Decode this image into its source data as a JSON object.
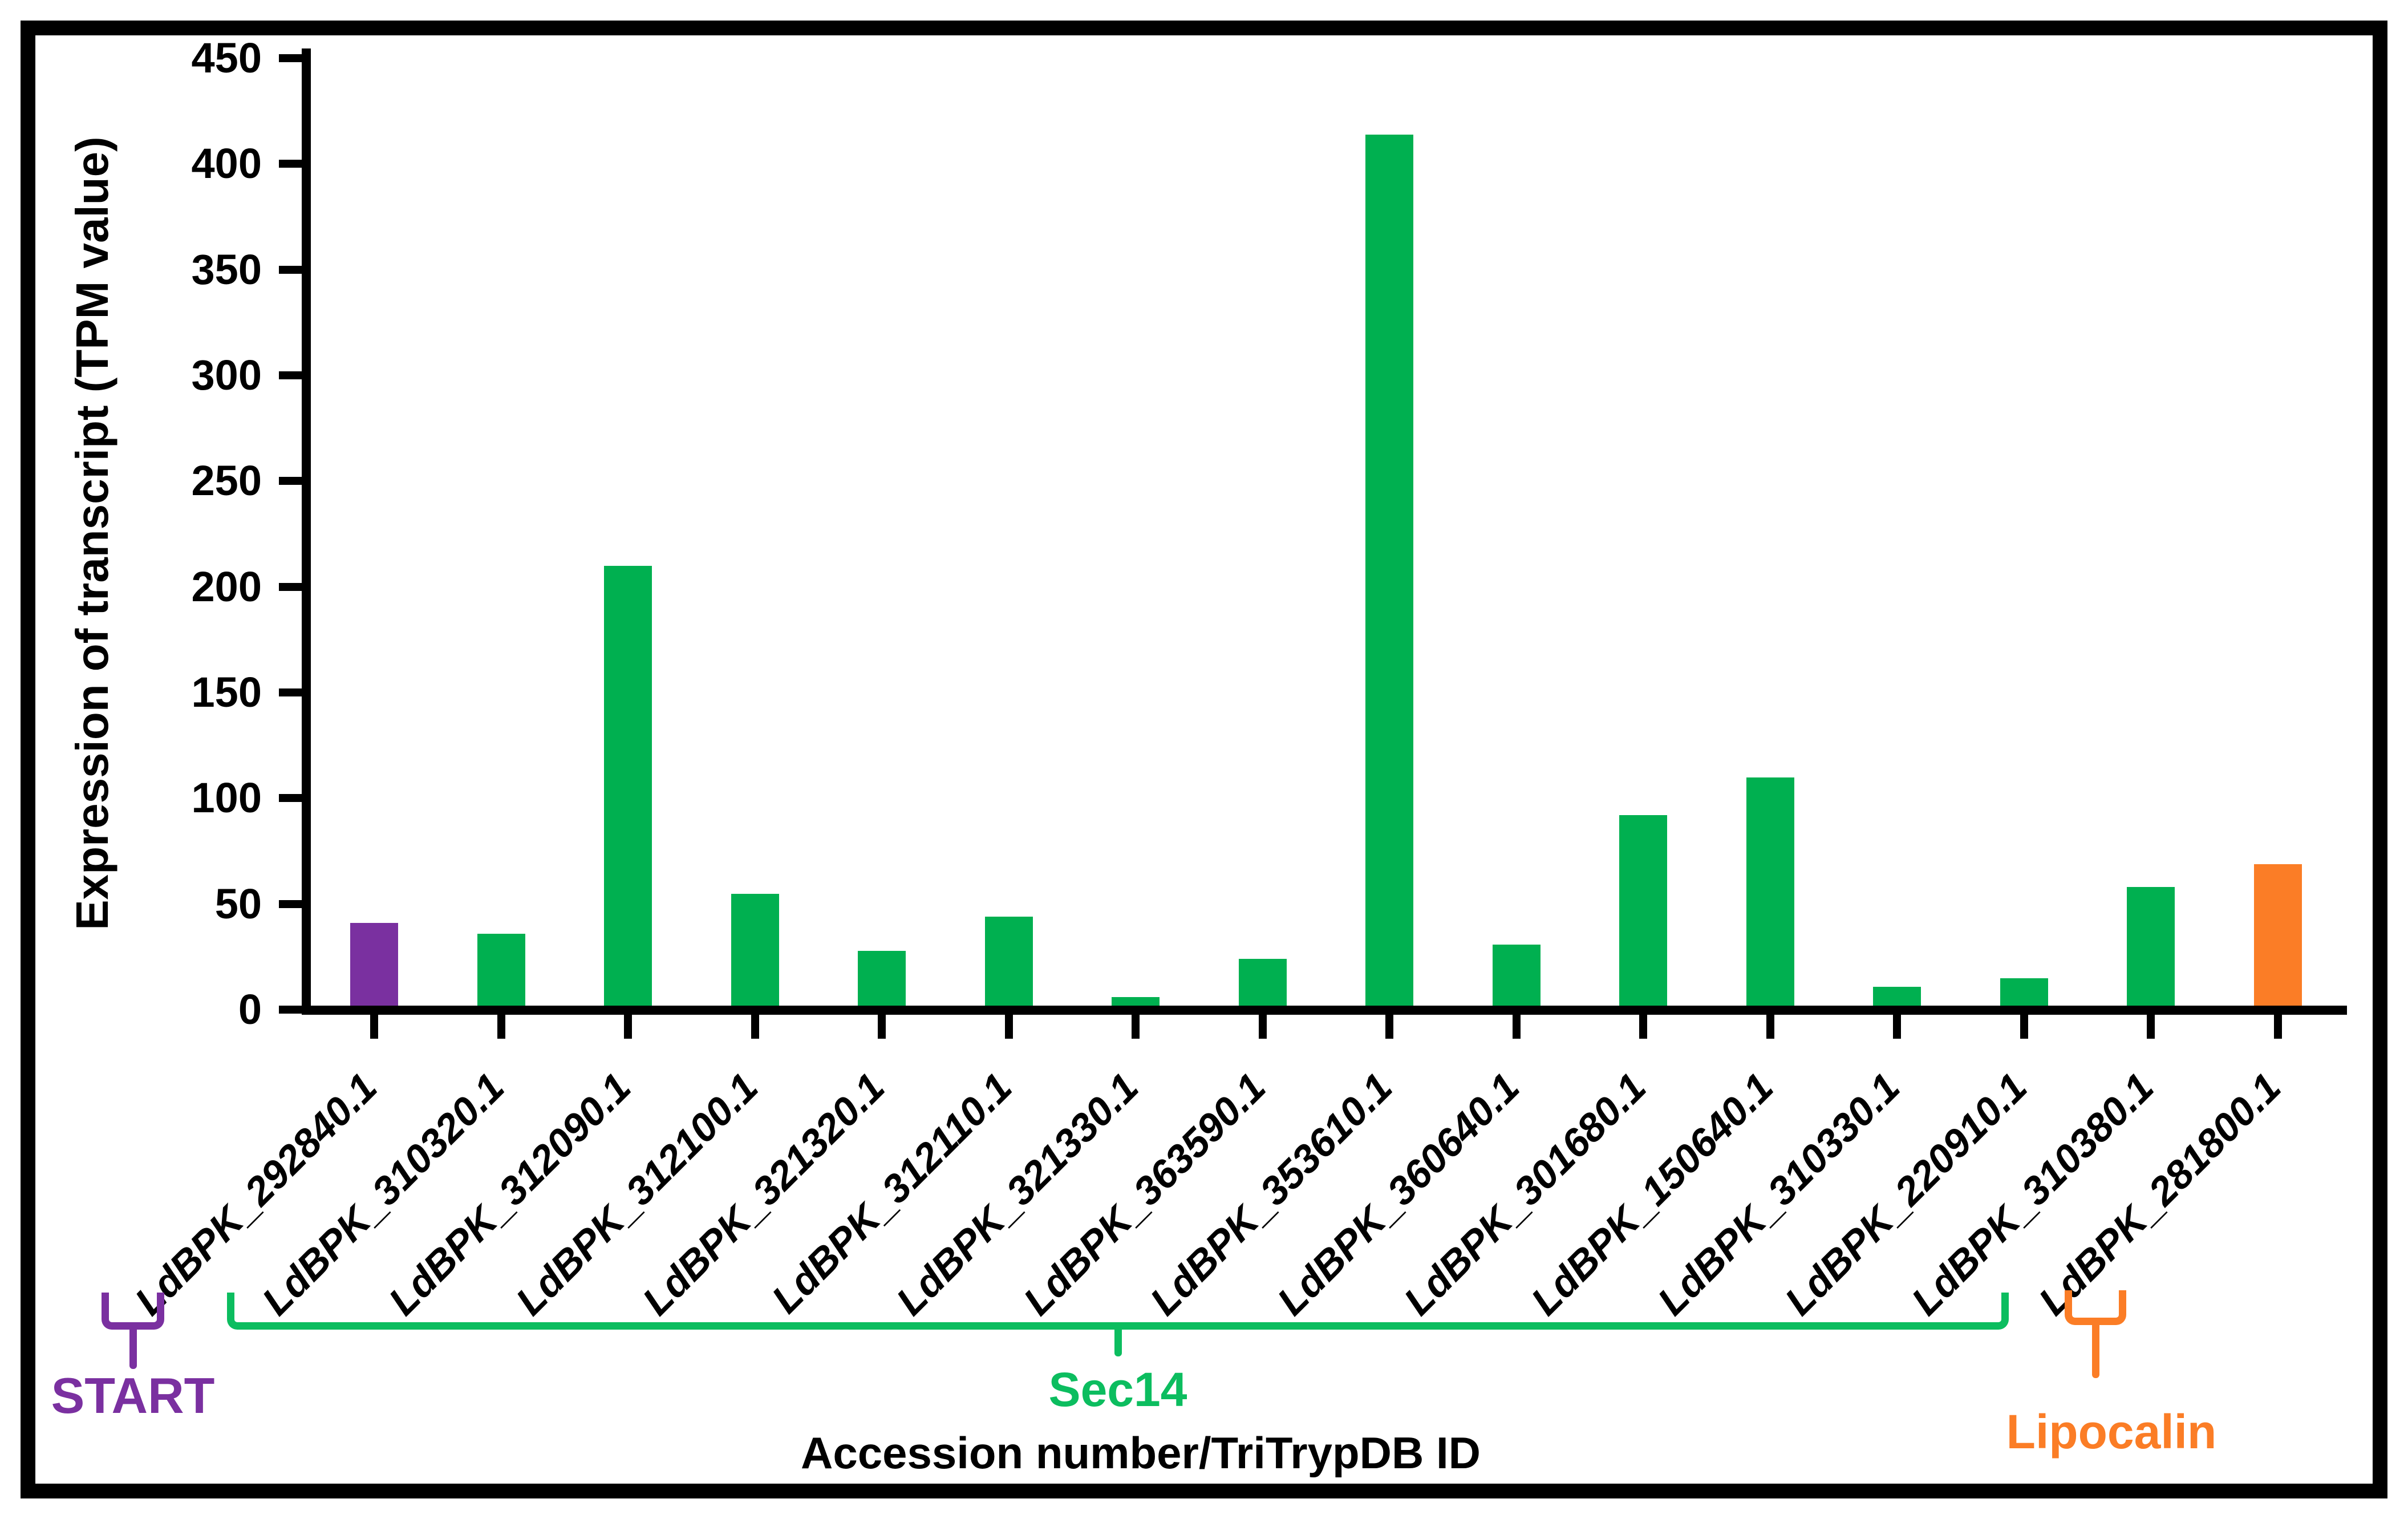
{
  "figure": {
    "background": "#ffffff",
    "border_color": "#000000"
  },
  "chart_data": {
    "type": "bar",
    "title": "",
    "xlabel": "Accession number/TriTrypDB ID",
    "ylabel": "Expression of transcript (TPM value)",
    "ylim": [
      0,
      450
    ],
    "ytick_interval": 50,
    "yticks": [
      0,
      50,
      100,
      150,
      200,
      250,
      300,
      350,
      400,
      450
    ],
    "grid": false,
    "legend": "none",
    "categories": [
      "LdBPK_292840.1",
      "LdBPK_310320.1",
      "LdBPK_312090.1",
      "LdBPK_312100.1",
      "LdBPK_321320.1",
      "LdBPK_312110.1",
      "LdBPK_321330.1",
      "LdBPK_363590.1",
      "LdBPK_353610.1",
      "LdBPK_360640.1",
      "LdBPK_301680.1",
      "LdBPK_150640.1",
      "LdBPK_310330.1",
      "LdBPK_220910.1",
      "LdBPK_310380.1",
      "LdBPK_281800.1"
    ],
    "values": [
      39,
      34,
      208,
      53,
      26,
      42,
      4,
      22,
      412,
      29,
      90,
      108,
      9,
      13,
      56,
      67
    ],
    "bar_colors": [
      "#7A30A0",
      "#00B050",
      "#00B050",
      "#00B050",
      "#00B050",
      "#00B050",
      "#00B050",
      "#00B050",
      "#00B050",
      "#00B050",
      "#00B050",
      "#00B050",
      "#00B050",
      "#00B050",
      "#00B050",
      "#FB7D26"
    ],
    "groups": [
      {
        "label": "START",
        "color": "#7A30A0",
        "first_category": "LdBPK_292840.1",
        "last_category": "LdBPK_292840.1"
      },
      {
        "label": "Sec14",
        "color": "#0CBD5F",
        "first_category": "LdBPK_310320.1",
        "last_category": "LdBPK_310380.1"
      },
      {
        "label": "Lipocalin",
        "color": "#FB7D26",
        "first_category": "LdBPK_281800.1",
        "last_category": "LdBPK_281800.1"
      }
    ]
  }
}
